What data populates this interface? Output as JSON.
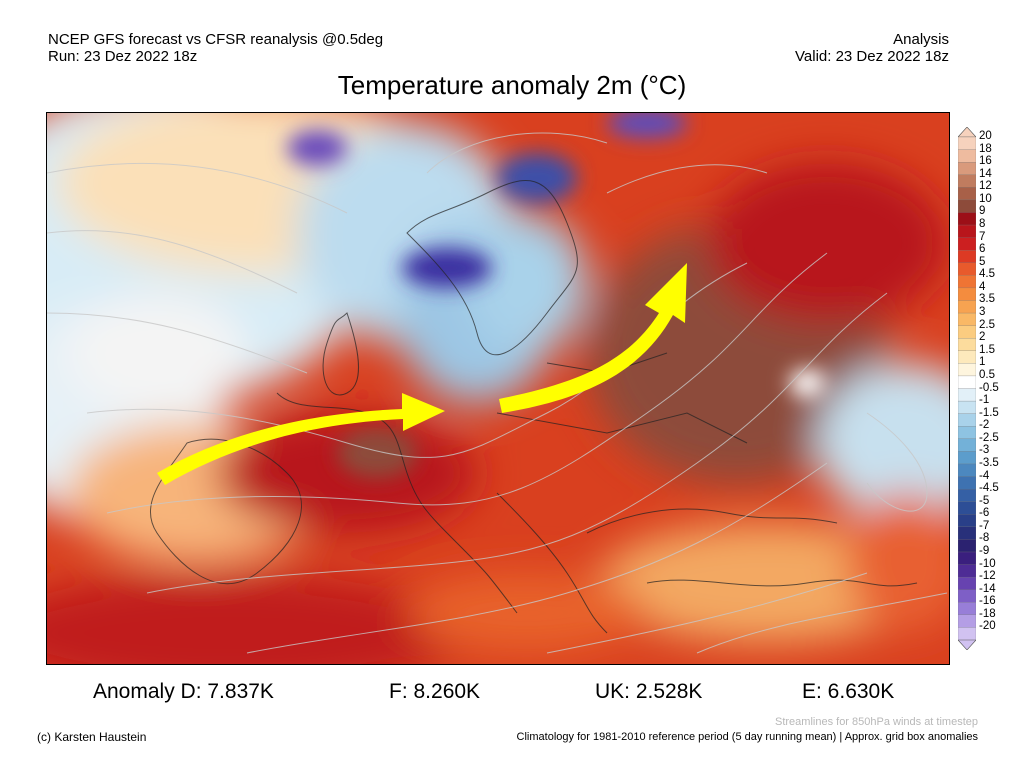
{
  "header": {
    "source_line": "NCEP GFS forecast vs CFSR reanalysis @0.5deg",
    "run_line": "Run: 23 Dez 2022 18z",
    "analysis_label": "Analysis",
    "valid_line": "Valid: 23 Dez 2022 18z",
    "title": "Temperature anomaly 2m (°C)"
  },
  "colorbar": {
    "labels": [
      "20",
      "18",
      "16",
      "14",
      "12",
      "10",
      "9",
      "8",
      "7",
      "6",
      "5",
      "4.5",
      "4",
      "3.5",
      "3",
      "2.5",
      "2",
      "1.5",
      "1",
      "0.5",
      "-0.5",
      "-1",
      "-1.5",
      "-2",
      "-2.5",
      "-3",
      "-3.5",
      "-4",
      "-4.5",
      "-5",
      "-6",
      "-7",
      "-8",
      "-9",
      "-10",
      "-12",
      "-14",
      "-16",
      "-18",
      "-20"
    ],
    "colors": [
      "#f6d2bd",
      "#eebb9f",
      "#d99a7c",
      "#c07c5f",
      "#a86048",
      "#8d4b3a",
      "#9c0f17",
      "#b8151b",
      "#cc1f20",
      "#dd3a24",
      "#e85a2c",
      "#ef7434",
      "#f48c3e",
      "#f7a351",
      "#f9b866",
      "#fbcc80",
      "#fcdc9d",
      "#fde9bc",
      "#fef5de",
      "#ffffff",
      "#e2f0f8",
      "#c8e3f2",
      "#a9d2ea",
      "#8ec3e2",
      "#73b1d8",
      "#5c9dcc",
      "#4c88bf",
      "#3e72b1",
      "#3560a5",
      "#2d4e96",
      "#293f88",
      "#28307a",
      "#2b2270",
      "#3a1f7e",
      "#4e2c95",
      "#6743b0",
      "#7e5fc6",
      "#987ed8",
      "#b49ee5",
      "#d1c2f1"
    ]
  },
  "stats": {
    "D": "Anomaly D: 7.837K",
    "F": "F: 8.260K",
    "UK": "UK: 2.528K",
    "E": "E: 6.630K"
  },
  "footer": {
    "copyright": "(c) Karsten Haustein",
    "streamlines_note": "Streamlines for 850hPa winds at timestep",
    "climatology_note": "Climatology for 1981-2010 reference period (5 day running mean) | Approx. grid box anomalies"
  }
}
